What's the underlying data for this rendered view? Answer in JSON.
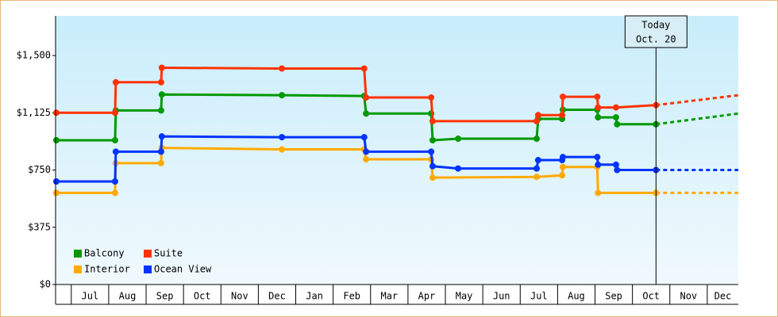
{
  "chart_data": {
    "type": "line",
    "xlim": [
      -0.42,
      17.83
    ],
    "xticks": [
      {
        "value": 0,
        "label": "Jul"
      },
      {
        "value": 1,
        "label": "Aug"
      },
      {
        "value": 2,
        "label": "Sep"
      },
      {
        "value": 3,
        "label": "Oct"
      },
      {
        "value": 4,
        "label": "Nov"
      },
      {
        "value": 5,
        "label": "Dec"
      },
      {
        "value": 6,
        "label": "Jan"
      },
      {
        "value": 7,
        "label": "Feb"
      },
      {
        "value": 8,
        "label": "Mar"
      },
      {
        "value": 9,
        "label": "Apr"
      },
      {
        "value": 10,
        "label": "May"
      },
      {
        "value": 11,
        "label": "Jun"
      },
      {
        "value": 12,
        "label": "Jul"
      },
      {
        "value": 13,
        "label": "Aug"
      },
      {
        "value": 14,
        "label": "Sep"
      },
      {
        "value": 15,
        "label": "Oct"
      },
      {
        "value": 16,
        "label": "Nov"
      },
      {
        "value": 17,
        "label": "Dec"
      }
    ],
    "ylim": [
      0,
      1760
    ],
    "yticks": [
      {
        "value": 0,
        "label": "$0"
      },
      {
        "value": 375,
        "label": "$375"
      },
      {
        "value": 750,
        "label": "$750"
      },
      {
        "value": 1125,
        "label": "$1,125"
      },
      {
        "value": 1500,
        "label": "$1,500"
      }
    ],
    "annotation": {
      "x": 15.63,
      "lines": [
        "Today",
        "Oct. 20"
      ]
    },
    "series": [
      {
        "name": "Balcony",
        "color": "#009900",
        "x": [
          -0.4,
          1.17,
          1.19,
          2.4,
          2.42,
          5.63,
          7.83,
          7.88,
          9.62,
          9.66,
          10.34,
          12.44,
          12.48,
          13.12,
          13.14,
          14.06,
          14.08,
          14.56,
          14.59,
          15.63
        ],
        "values": [
          945,
          945,
          1140,
          1140,
          1245,
          1240,
          1235,
          1120,
          1120,
          945,
          955,
          955,
          1085,
          1085,
          1145,
          1145,
          1095,
          1095,
          1050,
          1050
        ],
        "forecast_x": [
          15.63,
          17.83
        ],
        "forecast_values": [
          1050,
          1120
        ]
      },
      {
        "name": "Suite",
        "color": "#ff3300",
        "x": [
          -0.4,
          1.17,
          1.19,
          2.4,
          2.42,
          5.63,
          7.83,
          7.88,
          9.62,
          9.66,
          12.44,
          12.48,
          13.12,
          13.14,
          14.06,
          14.08,
          14.56,
          15.63
        ],
        "values": [
          1125,
          1125,
          1325,
          1325,
          1420,
          1415,
          1415,
          1225,
          1225,
          1070,
          1070,
          1110,
          1110,
          1230,
          1230,
          1160,
          1160,
          1175
        ],
        "forecast_x": [
          15.63,
          17.83
        ],
        "forecast_values": [
          1175,
          1240
        ]
      },
      {
        "name": "Interior",
        "color": "#ffaa00",
        "x": [
          -0.4,
          1.17,
          1.19,
          2.4,
          2.42,
          5.63,
          7.83,
          7.88,
          9.62,
          9.66,
          12.44,
          13.12,
          13.14,
          14.06,
          14.08,
          15.63
        ],
        "values": [
          600,
          600,
          795,
          795,
          895,
          885,
          885,
          820,
          820,
          700,
          705,
          715,
          770,
          770,
          600,
          600
        ],
        "forecast_x": [
          15.63,
          17.83
        ],
        "forecast_values": [
          600,
          600
        ]
      },
      {
        "name": "Ocean View",
        "color": "#0033ff",
        "x": [
          -0.4,
          1.17,
          1.19,
          2.4,
          2.42,
          5.63,
          7.83,
          7.88,
          9.62,
          9.66,
          10.34,
          12.44,
          12.48,
          13.12,
          13.14,
          14.06,
          14.08,
          14.56,
          14.59,
          15.63
        ],
        "values": [
          675,
          675,
          870,
          870,
          970,
          965,
          965,
          870,
          870,
          775,
          760,
          760,
          815,
          815,
          835,
          835,
          785,
          785,
          750,
          750
        ],
        "forecast_x": [
          15.63,
          17.83
        ],
        "forecast_values": [
          750,
          750
        ]
      }
    ]
  }
}
